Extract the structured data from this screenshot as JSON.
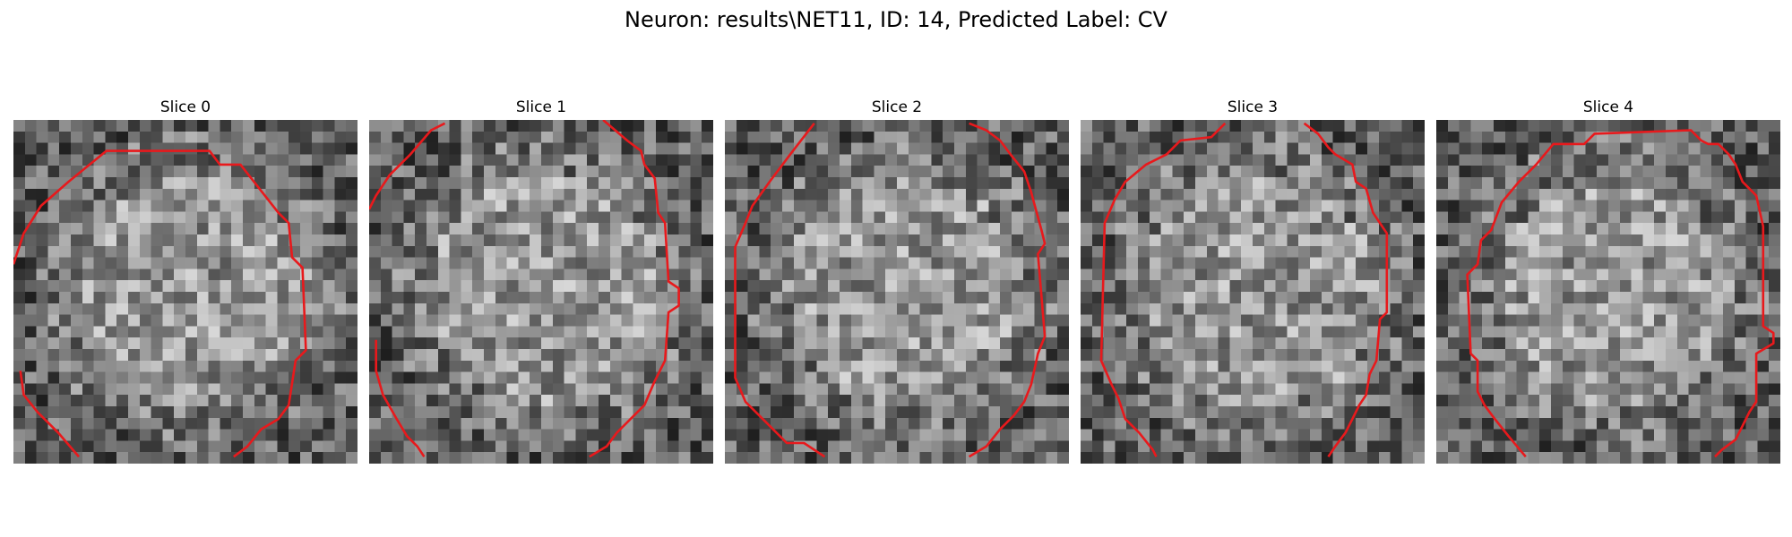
{
  "figure": {
    "title": "Neuron: results\\NET11, ID: 14, Predicted Label: CV"
  },
  "colors": {
    "contour": "#e8191c",
    "background": "#ffffff"
  },
  "image": {
    "colormap": "grayscale",
    "grid_cells": 30
  },
  "slices": [
    {
      "title": "Slice 0",
      "contour_segments": [
        [
          [
            0.0,
            0.42
          ],
          [
            0.03,
            0.33
          ],
          [
            0.08,
            0.25
          ],
          [
            0.16,
            0.18
          ],
          [
            0.27,
            0.09
          ],
          [
            0.57,
            0.09
          ],
          [
            0.6,
            0.13
          ],
          [
            0.66,
            0.13
          ],
          [
            0.77,
            0.27
          ],
          [
            0.8,
            0.3
          ],
          [
            0.81,
            0.4
          ],
          [
            0.84,
            0.43
          ],
          [
            0.85,
            0.67
          ],
          [
            0.82,
            0.7
          ],
          [
            0.8,
            0.83
          ],
          [
            0.77,
            0.87
          ],
          [
            0.72,
            0.9
          ],
          [
            0.68,
            0.95
          ],
          [
            0.64,
            0.98
          ]
        ],
        [
          [
            0.02,
            0.73
          ],
          [
            0.03,
            0.8
          ],
          [
            0.07,
            0.85
          ],
          [
            0.13,
            0.91
          ],
          [
            0.19,
            0.98
          ]
        ]
      ]
    },
    {
      "title": "Slice 1",
      "contour_segments": [
        [
          [
            0.0,
            0.26
          ],
          [
            0.02,
            0.22
          ],
          [
            0.06,
            0.16
          ],
          [
            0.12,
            0.1
          ],
          [
            0.18,
            0.03
          ],
          [
            0.22,
            0.01
          ]
        ],
        [
          [
            0.68,
            0.0
          ],
          [
            0.75,
            0.06
          ],
          [
            0.79,
            0.09
          ],
          [
            0.8,
            0.13
          ],
          [
            0.83,
            0.17
          ],
          [
            0.84,
            0.27
          ],
          [
            0.86,
            0.3
          ],
          [
            0.87,
            0.47
          ],
          [
            0.9,
            0.49
          ],
          [
            0.9,
            0.54
          ],
          [
            0.87,
            0.56
          ],
          [
            0.86,
            0.7
          ],
          [
            0.83,
            0.76
          ],
          [
            0.8,
            0.83
          ],
          [
            0.76,
            0.87
          ],
          [
            0.72,
            0.91
          ],
          [
            0.69,
            0.95
          ],
          [
            0.64,
            0.98
          ]
        ],
        [
          [
            0.02,
            0.64
          ],
          [
            0.02,
            0.73
          ],
          [
            0.04,
            0.8
          ],
          [
            0.08,
            0.87
          ],
          [
            0.11,
            0.92
          ],
          [
            0.14,
            0.95
          ],
          [
            0.16,
            0.98
          ]
        ]
      ]
    },
    {
      "title": "Slice 2",
      "contour_segments": [
        [
          [
            0.26,
            0.01
          ],
          [
            0.19,
            0.1
          ],
          [
            0.13,
            0.18
          ],
          [
            0.08,
            0.25
          ],
          [
            0.06,
            0.3
          ],
          [
            0.03,
            0.37
          ],
          [
            0.03,
            0.75
          ],
          [
            0.06,
            0.82
          ],
          [
            0.12,
            0.88
          ],
          [
            0.18,
            0.94
          ],
          [
            0.23,
            0.94
          ],
          [
            0.29,
            0.98
          ]
        ],
        [
          [
            0.71,
            0.01
          ],
          [
            0.76,
            0.03
          ],
          [
            0.8,
            0.06
          ],
          [
            0.83,
            0.1
          ],
          [
            0.87,
            0.15
          ],
          [
            0.89,
            0.21
          ],
          [
            0.92,
            0.32
          ],
          [
            0.93,
            0.36
          ],
          [
            0.91,
            0.39
          ],
          [
            0.93,
            0.63
          ],
          [
            0.91,
            0.68
          ],
          [
            0.89,
            0.77
          ],
          [
            0.87,
            0.82
          ],
          [
            0.84,
            0.86
          ],
          [
            0.8,
            0.9
          ],
          [
            0.76,
            0.95
          ],
          [
            0.71,
            0.98
          ]
        ]
      ]
    },
    {
      "title": "Slice 3",
      "contour_segments": [
        [
          [
            0.42,
            0.01
          ],
          [
            0.38,
            0.05
          ],
          [
            0.29,
            0.06
          ],
          [
            0.25,
            0.1
          ],
          [
            0.19,
            0.13
          ],
          [
            0.13,
            0.18
          ],
          [
            0.1,
            0.23
          ],
          [
            0.07,
            0.3
          ],
          [
            0.06,
            0.7
          ],
          [
            0.09,
            0.77
          ],
          [
            0.11,
            0.81
          ],
          [
            0.13,
            0.87
          ],
          [
            0.17,
            0.91
          ],
          [
            0.21,
            0.96
          ],
          [
            0.22,
            0.98
          ]
        ],
        [
          [
            0.65,
            0.01
          ],
          [
            0.69,
            0.04
          ],
          [
            0.72,
            0.08
          ],
          [
            0.74,
            0.1
          ],
          [
            0.79,
            0.13
          ],
          [
            0.8,
            0.18
          ],
          [
            0.83,
            0.2
          ],
          [
            0.85,
            0.27
          ],
          [
            0.89,
            0.33
          ],
          [
            0.89,
            0.56
          ],
          [
            0.87,
            0.58
          ],
          [
            0.86,
            0.7
          ],
          [
            0.84,
            0.74
          ],
          [
            0.83,
            0.8
          ],
          [
            0.81,
            0.83
          ],
          [
            0.79,
            0.87
          ],
          [
            0.77,
            0.91
          ],
          [
            0.74,
            0.95
          ],
          [
            0.72,
            0.98
          ]
        ]
      ]
    },
    {
      "title": "Slice 4",
      "contour_segments": [
        [
          [
            0.26,
            0.98
          ],
          [
            0.21,
            0.92
          ],
          [
            0.17,
            0.87
          ],
          [
            0.14,
            0.83
          ],
          [
            0.12,
            0.79
          ],
          [
            0.12,
            0.7
          ],
          [
            0.1,
            0.68
          ],
          [
            0.09,
            0.45
          ],
          [
            0.12,
            0.42
          ],
          [
            0.13,
            0.35
          ],
          [
            0.16,
            0.32
          ],
          [
            0.19,
            0.24
          ],
          [
            0.24,
            0.18
          ],
          [
            0.29,
            0.13
          ],
          [
            0.34,
            0.07
          ],
          [
            0.43,
            0.07
          ],
          [
            0.46,
            0.04
          ],
          [
            0.74,
            0.03
          ],
          [
            0.77,
            0.06
          ],
          [
            0.79,
            0.07
          ],
          [
            0.82,
            0.07
          ],
          [
            0.85,
            0.1
          ],
          [
            0.87,
            0.13
          ],
          [
            0.89,
            0.18
          ],
          [
            0.93,
            0.22
          ],
          [
            0.95,
            0.31
          ],
          [
            0.95,
            0.6
          ],
          [
            0.98,
            0.62
          ],
          [
            0.98,
            0.65
          ],
          [
            0.93,
            0.68
          ],
          [
            0.93,
            0.82
          ],
          [
            0.91,
            0.85
          ],
          [
            0.89,
            0.89
          ],
          [
            0.87,
            0.93
          ],
          [
            0.83,
            0.96
          ],
          [
            0.81,
            0.98
          ]
        ]
      ]
    }
  ]
}
